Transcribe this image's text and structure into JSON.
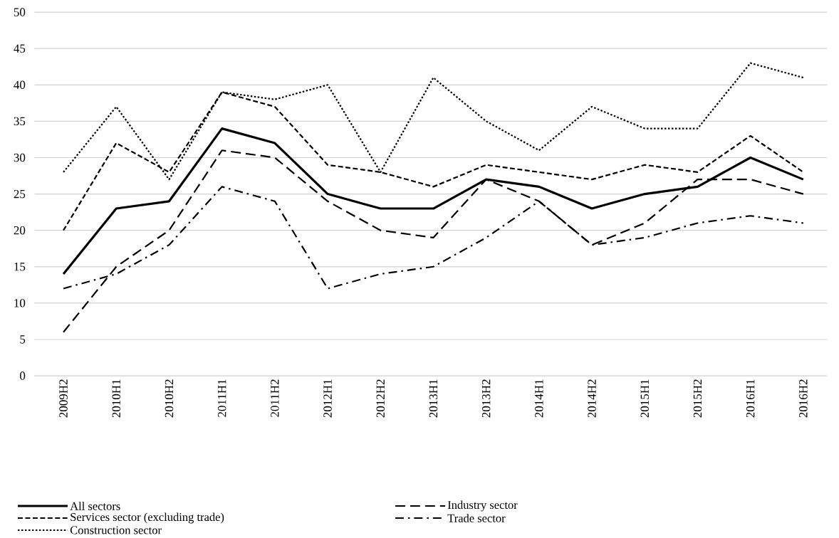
{
  "chart_data": {
    "type": "line",
    "categories": [
      "2009H2",
      "2010H1",
      "2010H2",
      "2011H1",
      "2011H2",
      "2012H1",
      "2012H2",
      "2013H1",
      "2013H2",
      "2014H1",
      "2014H2",
      "2015H1",
      "2015H2",
      "2016H1",
      "2016H2"
    ],
    "series": [
      {
        "name": "All sectors",
        "color": "#000000",
        "line_style": "solid",
        "values": [
          14,
          23,
          24,
          34,
          32,
          25,
          23,
          23,
          27,
          26,
          23,
          25,
          26,
          30,
          27
        ]
      },
      {
        "name": "Industry sector",
        "color": "#000000",
        "line_style": "longdash",
        "values": [
          6,
          15,
          20,
          31,
          30,
          24,
          20,
          19,
          27,
          24,
          18,
          21,
          27,
          27,
          25
        ]
      },
      {
        "name": "Services sector (excluding trade)",
        "color": "#000000",
        "line_style": "dashed",
        "values": [
          20,
          32,
          28,
          39,
          37,
          29,
          28,
          26,
          29,
          28,
          27,
          29,
          28,
          33,
          28
        ]
      },
      {
        "name": "Trade sector",
        "color": "#000000",
        "line_style": "dashdot",
        "values": [
          12,
          14,
          18,
          26,
          24,
          12,
          14,
          15,
          19,
          24,
          18,
          19,
          21,
          22,
          21
        ]
      },
      {
        "name": "Construction sector",
        "color": "#000000",
        "line_style": "dotted",
        "values": [
          28,
          37,
          27,
          39,
          38,
          40,
          28,
          41,
          35,
          31,
          37,
          34,
          34,
          43,
          41
        ]
      }
    ],
    "ylim": [
      0,
      50
    ],
    "yticks": [
      0,
      5,
      10,
      15,
      20,
      25,
      30,
      35,
      40,
      45,
      50
    ],
    "grid": "y",
    "legend": "bottom",
    "marker": "none"
  }
}
